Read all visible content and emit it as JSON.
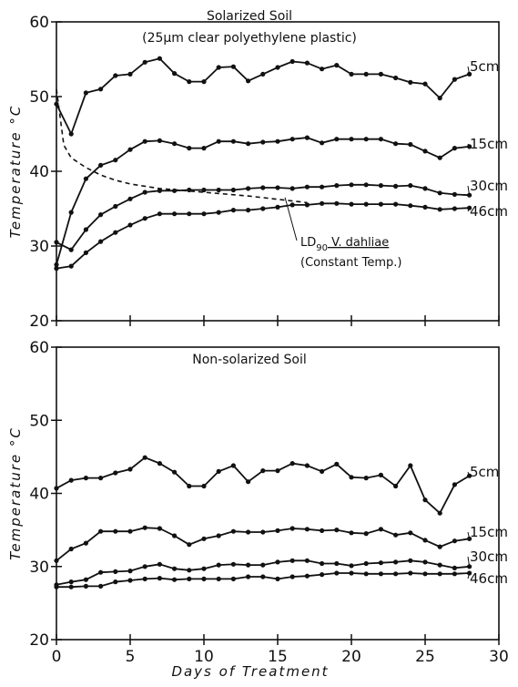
{
  "chart_data": [
    {
      "type": "line",
      "title": "Solarized Soil",
      "subtitle": "(25μm clear polyethylene plastic)",
      "xlabel": "",
      "ylabel": "Temperature °C",
      "xlim": [
        0,
        30
      ],
      "ylim": [
        20,
        60
      ],
      "x_ticks": [
        "",
        "",
        "",
        "",
        "",
        "",
        ""
      ],
      "y_ticks": [
        "20",
        "30",
        "40",
        "50",
        "60"
      ],
      "grid": false,
      "x": [
        0,
        1,
        2,
        3,
        4,
        5,
        6,
        7,
        8,
        9,
        10,
        11,
        12,
        13,
        14,
        15,
        16,
        17,
        18,
        19,
        20,
        21,
        22,
        23,
        24,
        25,
        26,
        27,
        28
      ],
      "series": [
        {
          "name": "5cm",
          "values": [
            49,
            45,
            50.5,
            51,
            52.8,
            53,
            54.6,
            55.1,
            53.1,
            52,
            52,
            53.9,
            54,
            52.1,
            53,
            53.9,
            54.7,
            54.5,
            53.7,
            54.2,
            53,
            53,
            53,
            52.5,
            51.9,
            51.7,
            49.8,
            52.3,
            53
          ]
        },
        {
          "name": "15cm",
          "values": [
            27.5,
            34.5,
            39,
            40.8,
            41.5,
            42.9,
            44,
            44.1,
            43.7,
            43.1,
            43.1,
            44,
            44,
            43.7,
            43.9,
            44,
            44.3,
            44.5,
            43.8,
            44.3,
            44.3,
            44.3,
            44.3,
            43.7,
            43.6,
            42.7,
            41.8,
            43.1,
            43.3
          ]
        },
        {
          "name": "30cm",
          "values": [
            30.5,
            29.5,
            32.2,
            34.2,
            35.3,
            36.3,
            37.2,
            37.4,
            37.4,
            37.5,
            37.5,
            37.5,
            37.5,
            37.7,
            37.8,
            37.8,
            37.7,
            37.9,
            37.9,
            38.1,
            38.2,
            38.2,
            38.1,
            38,
            38.1,
            37.7,
            37.1,
            36.9,
            36.8
          ]
        },
        {
          "name": "46cm",
          "values": [
            27,
            27.3,
            29.1,
            30.6,
            31.8,
            32.8,
            33.7,
            34.3,
            34.3,
            34.3,
            34.3,
            34.5,
            34.8,
            34.8,
            35,
            35.2,
            35.5,
            35.5,
            35.7,
            35.7,
            35.6,
            35.6,
            35.6,
            35.6,
            35.4,
            35.2,
            34.9,
            35,
            35.1
          ]
        }
      ],
      "reference_curve": {
        "name": "LD90 V. dahliae (Constant Temp.)",
        "label_main": "LD",
        "label_sub": "90",
        "label_rest": " V. dahliae",
        "label_line2": "(Constant Temp.)",
        "x": [
          0,
          0.5,
          1,
          2,
          3,
          4,
          5,
          7,
          10,
          13,
          17
        ],
        "values": [
          51,
          43.5,
          41.8,
          40.5,
          39.5,
          38.8,
          38.3,
          37.7,
          37.2,
          36.7,
          35.8
        ]
      },
      "series_labels": [
        "5cm",
        "15cm",
        "30cm",
        "46cm"
      ]
    },
    {
      "type": "line",
      "title": "Non-solarized Soil",
      "xlabel": "Days of Treatment",
      "ylabel": "Temperature °C",
      "xlim": [
        0,
        30
      ],
      "ylim": [
        20,
        60
      ],
      "x_ticks": [
        "0",
        "5",
        "10",
        "15",
        "20",
        "25",
        "30"
      ],
      "y_ticks": [
        "20",
        "30",
        "40",
        "50",
        "60"
      ],
      "grid": false,
      "x": [
        0,
        1,
        2,
        3,
        4,
        5,
        6,
        7,
        8,
        9,
        10,
        11,
        12,
        13,
        14,
        15,
        16,
        17,
        18,
        19,
        20,
        21,
        22,
        23,
        24,
        25,
        26,
        27,
        28
      ],
      "series": [
        {
          "name": "5cm",
          "values": [
            40.7,
            41.8,
            42.1,
            42.1,
            42.8,
            43.3,
            44.9,
            44.1,
            42.9,
            41,
            41,
            43,
            43.8,
            41.6,
            43.1,
            43.1,
            44.1,
            43.8,
            43,
            44,
            42.2,
            42.1,
            42.5,
            41,
            43.8,
            39.1,
            37.3,
            41.2,
            42.4
          ]
        },
        {
          "name": "15cm",
          "values": [
            30.8,
            32.4,
            33.2,
            34.8,
            34.8,
            34.8,
            35.3,
            35.2,
            34.2,
            33,
            33.8,
            34.2,
            34.8,
            34.7,
            34.7,
            34.9,
            35.2,
            35.1,
            34.9,
            35,
            34.6,
            34.5,
            35.1,
            34.3,
            34.6,
            33.6,
            32.7,
            33.5,
            33.8
          ]
        },
        {
          "name": "30cm",
          "values": [
            27.5,
            27.9,
            28.2,
            29.2,
            29.3,
            29.4,
            30,
            30.3,
            29.7,
            29.5,
            29.7,
            30.2,
            30.3,
            30.2,
            30.2,
            30.6,
            30.8,
            30.8,
            30.4,
            30.4,
            30.1,
            30.4,
            30.5,
            30.6,
            30.8,
            30.6,
            30.2,
            29.8,
            30
          ]
        },
        {
          "name": "46cm",
          "values": [
            27.2,
            27.2,
            27.3,
            27.3,
            27.9,
            28.1,
            28.3,
            28.4,
            28.2,
            28.3,
            28.3,
            28.3,
            28.3,
            28.6,
            28.6,
            28.3,
            28.6,
            28.7,
            28.9,
            29.1,
            29.1,
            29,
            29,
            29,
            29.1,
            29,
            29,
            29,
            29.1
          ]
        }
      ],
      "series_labels": [
        "5cm",
        "15cm",
        "30cm",
        "46cm"
      ]
    }
  ]
}
